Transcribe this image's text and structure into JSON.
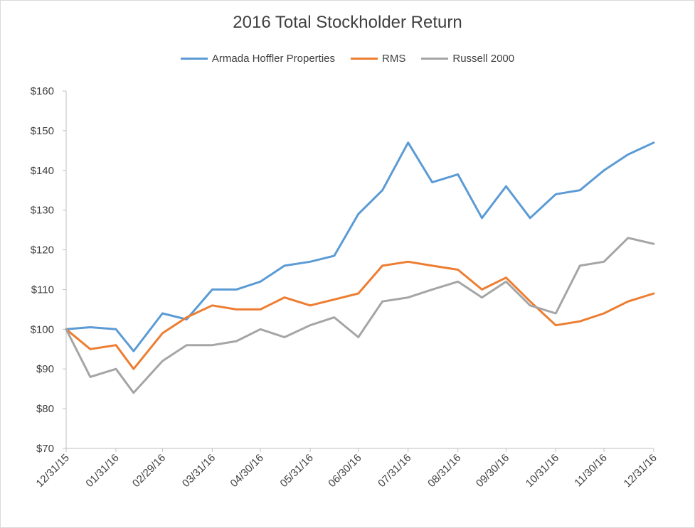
{
  "chart_data": {
    "type": "line",
    "title": "2016 Total Stockholder Return",
    "xlabel": "",
    "ylabel": "",
    "ylim": [
      70,
      160
    ],
    "yticks": [
      "$70",
      "$80",
      "$90",
      "$100",
      "$110",
      "$120",
      "$130",
      "$140",
      "$150",
      "$160"
    ],
    "ytick_values": [
      70,
      80,
      90,
      100,
      110,
      120,
      130,
      140,
      150,
      160
    ],
    "x_tick_labels": [
      "12/31/15",
      "01/31/16",
      "02/29/16",
      "03/31/16",
      "04/30/16",
      "05/31/16",
      "06/30/16",
      "07/31/16",
      "08/31/16",
      "09/30/16",
      "10/31/16",
      "11/30/16",
      "12/31/16"
    ],
    "x_dates": [
      "2015-12-31",
      "2016-01-15",
      "2016-01-31",
      "2016-02-11",
      "2016-02-29",
      "2016-03-15",
      "2016-03-31",
      "2016-04-15",
      "2016-04-30",
      "2016-05-15",
      "2016-05-31",
      "2016-06-15",
      "2016-06-30",
      "2016-07-15",
      "2016-07-31",
      "2016-08-15",
      "2016-08-31",
      "2016-09-15",
      "2016-09-30",
      "2016-10-15",
      "2016-10-31",
      "2016-11-15",
      "2016-11-30",
      "2016-12-15",
      "2016-12-31"
    ],
    "grid": false,
    "legend_position": "top",
    "series": [
      {
        "name": "Armada Hoffler Properties",
        "color": "#5b9bd5",
        "values": [
          100,
          100.5,
          100,
          94.5,
          104,
          102.5,
          110,
          110,
          112,
          116,
          117,
          118.5,
          129,
          135,
          147,
          137,
          139,
          128,
          136,
          128,
          134,
          135,
          140,
          144,
          147
        ]
      },
      {
        "name": "RMS",
        "color": "#ed7d31",
        "values": [
          100,
          95,
          96,
          90,
          99,
          103,
          106,
          105,
          105,
          108,
          106,
          107.5,
          109,
          116,
          117,
          116,
          115,
          110,
          113,
          107,
          101,
          102,
          104,
          107,
          109
        ]
      },
      {
        "name": "Russell 2000",
        "color": "#a5a5a5",
        "values": [
          100,
          88,
          90,
          84,
          92,
          96,
          96,
          97,
          100,
          98,
          101,
          103,
          98,
          107,
          108,
          110,
          112,
          108,
          112,
          106,
          104,
          116,
          117,
          123,
          121.5
        ]
      }
    ]
  }
}
